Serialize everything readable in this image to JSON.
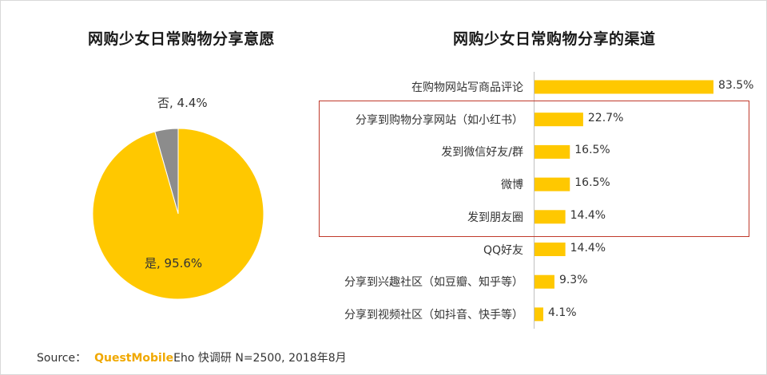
{
  "chart_data": [
    {
      "type": "pie",
      "title": "网购少女日常购物分享意愿",
      "slices": [
        {
          "label": "是",
          "value": 95.6,
          "display": "是, 95.6%",
          "color": "#ffc800"
        },
        {
          "label": "否",
          "value": 4.4,
          "display": "否, 4.4%",
          "color": "#8c8c8c"
        }
      ]
    },
    {
      "type": "bar",
      "orientation": "horizontal",
      "title": "网购少女日常购物分享的渠道",
      "bar_color": "#ffc800",
      "categories": [
        "在购物网站写商品评论",
        "分享到购物分享网站（如小红书）",
        "发到微信好友/群",
        "微博",
        "发到朋友圈",
        "QQ好友",
        "分享到兴趣社区（如豆瓣、知乎等）",
        "分享到视频社区（如抖音、快手等）"
      ],
      "values": [
        83.5,
        22.7,
        16.5,
        16.5,
        14.4,
        14.4,
        9.3,
        4.1
      ],
      "value_labels": [
        "83.5%",
        "22.7%",
        "16.5%",
        "16.5%",
        "14.4%",
        "14.4%",
        "9.3%",
        "4.1%"
      ],
      "highlight_box_color": "#c0392b"
    }
  ],
  "source": {
    "prefix": "Source：",
    "brand": "QuestMobile",
    "text": "Eho 快调研 N=2500, 2018年8月"
  }
}
